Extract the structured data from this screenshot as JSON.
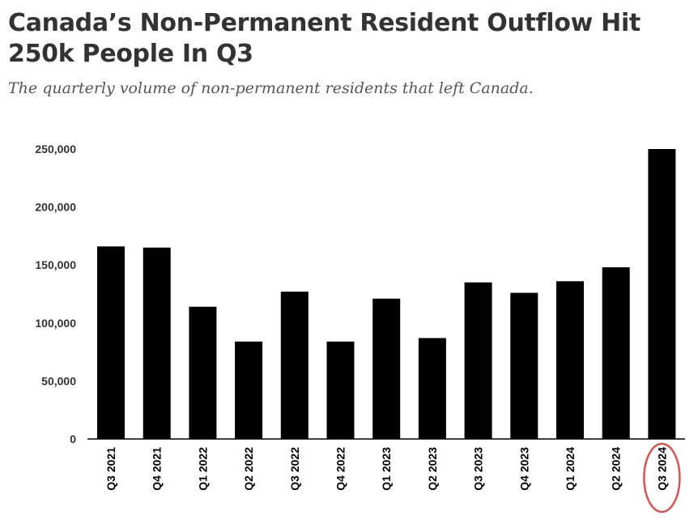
{
  "title": "Canada’s Non-Permanent Resident Outflow Hit 250k People In Q3",
  "subtitle": "The quarterly volume of non-permanent residents that left Canada.",
  "colors": {
    "bar": "#000000",
    "highlight": "#d9534f",
    "text": "#333333"
  },
  "chart_data": {
    "type": "bar",
    "title": "Canada’s Non-Permanent Resident Outflow Hit 250k People In Q3",
    "subtitle": "The quarterly volume of non-permanent residents that left Canada.",
    "categories": [
      "Q3 2021",
      "Q4 2021",
      "Q1 2022",
      "Q2 2022",
      "Q3 2022",
      "Q4 2022",
      "Q1 2023",
      "Q2 2023",
      "Q3 2023",
      "Q4 2023",
      "Q1 2024",
      "Q2 2024",
      "Q3 2024"
    ],
    "values": [
      166000,
      165000,
      114000,
      84000,
      127000,
      84000,
      121000,
      87000,
      135000,
      126000,
      136000,
      148000,
      250000
    ],
    "ylim": [
      0,
      250000
    ],
    "yticks": [
      0,
      50000,
      100000,
      150000,
      200000,
      250000
    ],
    "ytick_labels": [
      "0",
      "50,000",
      "100,000",
      "150,000",
      "200,000",
      "250,000"
    ],
    "xlabel": "",
    "ylabel": "",
    "grid": false,
    "highlighted_category": "Q3 2024"
  }
}
